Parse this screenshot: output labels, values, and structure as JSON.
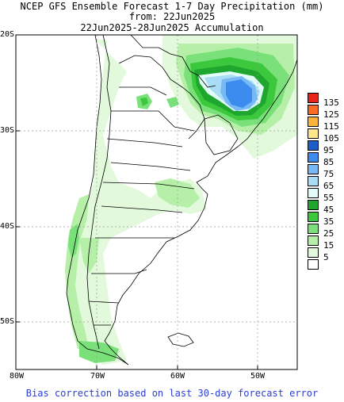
{
  "title": {
    "line1": "NCEP GFS Ensemble Forecast 1-7 Day Precipitation (mm)",
    "line2": "from: 22Jun2025",
    "line3": "22Jun2025-28Jun2025 Accumulation"
  },
  "axes": {
    "lat_labels": [
      "20S",
      "30S",
      "40S",
      "50S"
    ],
    "lon_labels": [
      "80W",
      "70W",
      "60W",
      "50W"
    ]
  },
  "legend": {
    "items": [
      {
        "label": "135",
        "color": "#e8231c"
      },
      {
        "label": "125",
        "color": "#f76b22"
      },
      {
        "label": "115",
        "color": "#fbb33a"
      },
      {
        "label": "105",
        "color": "#fde78a"
      },
      {
        "label": "95",
        "color": "#1d5fc9"
      },
      {
        "label": "85",
        "color": "#3c8cf0"
      },
      {
        "label": "75",
        "color": "#77b8f5"
      },
      {
        "label": "65",
        "color": "#a9ddf6"
      },
      {
        "label": "55",
        "color": "#e0fbf8"
      },
      {
        "label": "45",
        "color": "#1ea62e"
      },
      {
        "label": "35",
        "color": "#3cc83c"
      },
      {
        "label": "25",
        "color": "#7ae07a"
      },
      {
        "label": "15",
        "color": "#b6f0a8"
      },
      {
        "label": "5",
        "color": "#e2fadb"
      },
      {
        "label": "",
        "color": "#ffffff"
      }
    ]
  },
  "footer": "Bias correction based on last 30-day forecast error"
}
